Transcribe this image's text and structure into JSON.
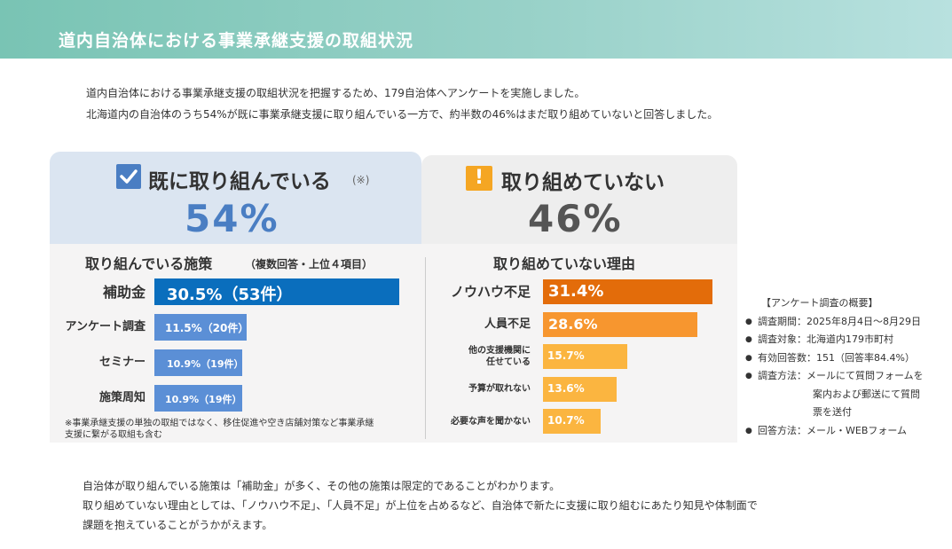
{
  "header": {
    "title": "道内自治体における事業承継支援の取組状況"
  },
  "intro": {
    "line1": "道内自治体における事業承継支援の取組状況を把握するため、179自治体へアンケートを実施しました。",
    "line2": "北海道内の自治体のうち54%が既に事業承継支援に取り組んでいる一方で、約半数の46%はまだ取り組めていないと回答しました。"
  },
  "left": {
    "heading": "既に取り組んでいる",
    "heading_note": "(※)",
    "percent": "54%",
    "subheading": "取り組んでいる施策",
    "subheading_note": "（複数回答・上位４項目）",
    "footnote_line1": "※事業承継支援の単独の取組ではなく、移住促進や空き店舗対策など事業承継",
    "footnote_line2": "支援に繋がる取組も含む"
  },
  "right": {
    "heading": "取り組めていない",
    "warn_symbol": "!",
    "percent": "46%",
    "subheading": "取り組めていない理由"
  },
  "chart_data": [
    {
      "type": "bar",
      "orientation": "horizontal",
      "categories": [
        "補助金",
        "アンケート調査",
        "セミナー",
        "施策周知"
      ],
      "values": [
        30.5,
        11.5,
        10.9,
        10.9
      ],
      "counts": [
        53,
        20,
        19,
        19
      ],
      "labels": [
        "30.5%（53件）",
        "11.5%（20件）",
        "10.9%（19件）",
        "10.9%（19件）"
      ],
      "colors": [
        "#0a6ebd",
        "#5b8fd6",
        "#5b8fd6",
        "#5b8fd6"
      ]
    },
    {
      "type": "bar",
      "orientation": "horizontal",
      "categories": [
        "ノウハウ不足",
        "人員不足",
        "他の支援機関に任せている",
        "予算が取れない",
        "必要な声を聞かない"
      ],
      "category_lines": [
        [
          "ノウハウ不足"
        ],
        [
          "人員不足"
        ],
        [
          "他の支援機関に",
          "任せている"
        ],
        [
          "予算が取れない"
        ],
        [
          "必要な声を聞かない"
        ]
      ],
      "values": [
        31.4,
        28.6,
        15.7,
        13.6,
        10.7
      ],
      "labels": [
        "31.4%",
        "28.6%",
        "15.7%",
        "13.6%",
        "10.7%"
      ],
      "colors": [
        "#e36c0a",
        "#f7962f",
        "#fbb540",
        "#fbb540",
        "#fbb540"
      ]
    }
  ],
  "survey": {
    "title": "【アンケート調査の概要】",
    "items": [
      "調査期間：2025年8月4日〜8月29日",
      "調査対象：北海道内179市町村",
      "有効回答数：151（回答率84.4%）",
      "調査方法：メールにて質問フォームを",
      "回答方法：メール・WEBフォーム"
    ],
    "method_cont1": "案内および郵送にて質問",
    "method_cont2": "票を送付"
  },
  "conclusion": {
    "line1": "自治体が取り組んでいる施策は「補助金」が多く、その他の施策は限定的であることがわかります。",
    "line2": "取り組めていない理由としては、「ノウハウ不足」、「人員不足」が上位を占めるなど、自治体で新たに支援に取り組むにあたり知見や体制面で",
    "line3": "課題を抱えていることがうかがえます。"
  }
}
